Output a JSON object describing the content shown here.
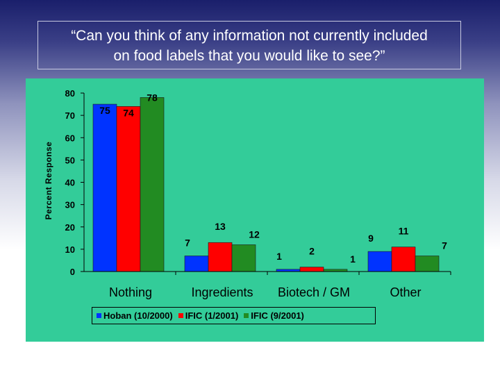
{
  "title_lines": [
    "“Can you think of any information not currently included",
    "on food labels that you would like to see?”"
  ],
  "chart_data": {
    "type": "bar",
    "title": "“Can you think of any information not currently included on food labels that you would like to see?”",
    "xlabel": "",
    "ylabel": "Percent Response",
    "ylim": [
      0,
      80
    ],
    "yticks": [
      0,
      10,
      20,
      30,
      40,
      50,
      60,
      70,
      80
    ],
    "categories": [
      "Nothing",
      "Ingredients",
      "Biotech / GM",
      "Other"
    ],
    "series": [
      {
        "name": "Hoban (10/2000)",
        "color": "#0033ff",
        "values": [
          75,
          7,
          1,
          9
        ]
      },
      {
        "name": "IFIC (1/2001)",
        "color": "#ff0000",
        "values": [
          74,
          13,
          2,
          11
        ]
      },
      {
        "name": "IFIC (9/2001)",
        "color": "#228b22",
        "values": [
          78,
          12,
          1,
          7
        ]
      }
    ],
    "legend": "bottom",
    "grid": false
  },
  "colors": {
    "panel_background": "#33cc99",
    "page_background": "#1a1f6b"
  }
}
